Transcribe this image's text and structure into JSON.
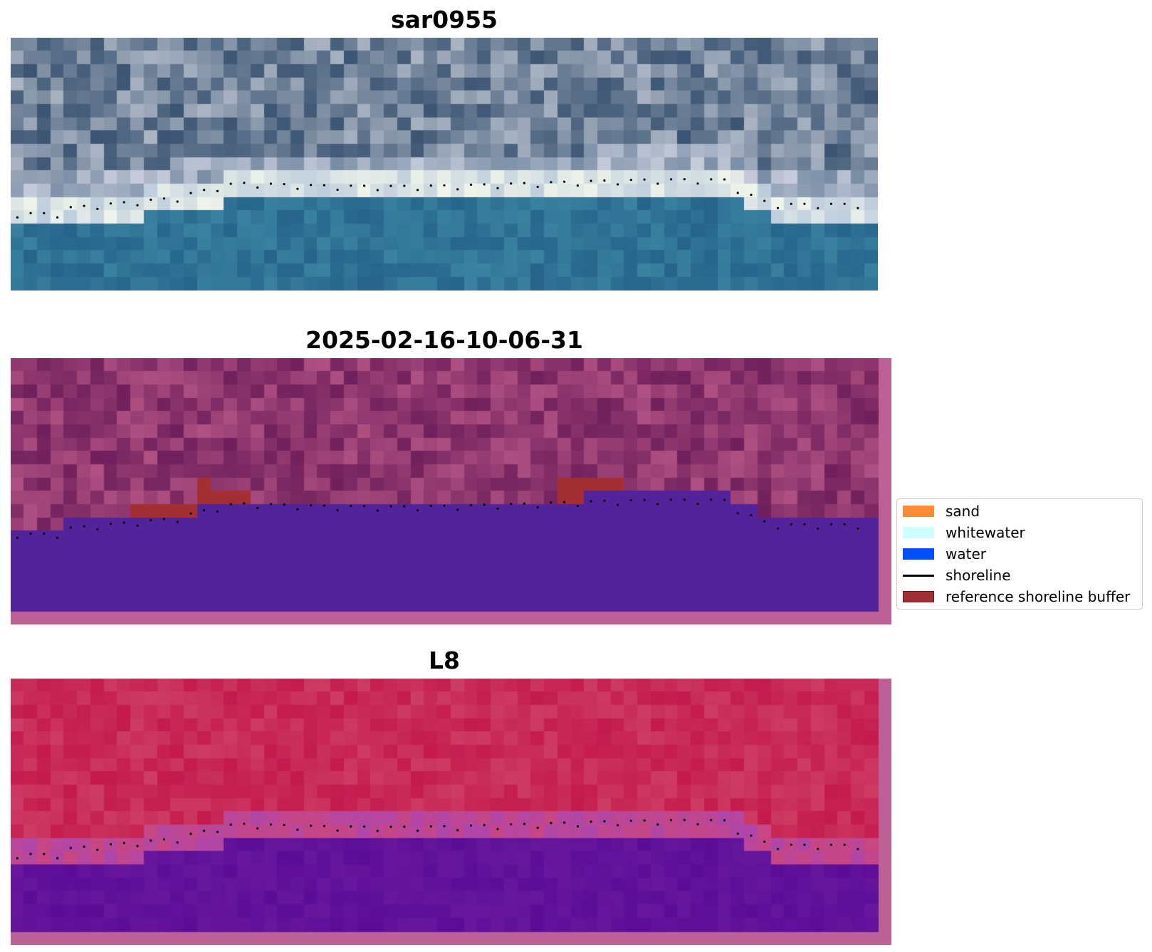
{
  "figure": {
    "panels": [
      {
        "title": "sar0955",
        "kind": "rgb"
      },
      {
        "title": "2025-02-16-10-06-31",
        "kind": "classified"
      },
      {
        "title": "L8",
        "kind": "index"
      }
    ],
    "colors": {
      "sand": "#ff8a3a",
      "whitewater": "#ccfffd",
      "water": "#0050ff",
      "shoreline": "#000000",
      "reference_buffer": "#a42f33",
      "reference_buffer_edge": "#6e1a1c",
      "frame_pink": "#bc6095",
      "water_overlay": "#52239a",
      "index_land": "#c41a4e",
      "index_water": "#5c0d98"
    },
    "legend": {
      "placement": "right",
      "items": [
        {
          "label": "sand",
          "type": "patch",
          "color": "#ff8a3a"
        },
        {
          "label": "whitewater",
          "type": "patch",
          "color": "#ccfffd"
        },
        {
          "label": "water",
          "type": "patch",
          "color": "#0050ff"
        },
        {
          "label": "shoreline",
          "type": "line",
          "color": "#000000"
        },
        {
          "label": "reference shoreline buffer",
          "type": "patch",
          "color": "#a42f33"
        }
      ]
    }
  }
}
